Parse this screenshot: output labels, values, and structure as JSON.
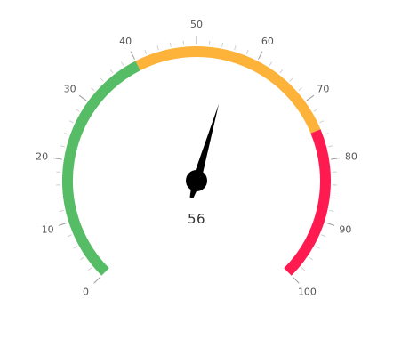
{
  "gauge": {
    "value": 56,
    "value_label": "56",
    "scale": {
      "min": 0,
      "max": 100,
      "major_step": 10,
      "minor_per_major": 5
    },
    "ranges": [
      {
        "from": 0,
        "to": 40,
        "color": "#56BD66"
      },
      {
        "from": 40,
        "to": 75,
        "color": "#FDB23A"
      },
      {
        "from": 75,
        "to": 100,
        "color": "#FF1A4F"
      }
    ],
    "ticks": [
      "0",
      "10",
      "20",
      "30",
      "40",
      "50",
      "60",
      "70",
      "80",
      "90",
      "100"
    ],
    "colors": {
      "needle": "#000000",
      "major_tick": "#9E9E9E",
      "minor_tick": "#D0D0D0",
      "label": "#555555"
    }
  }
}
